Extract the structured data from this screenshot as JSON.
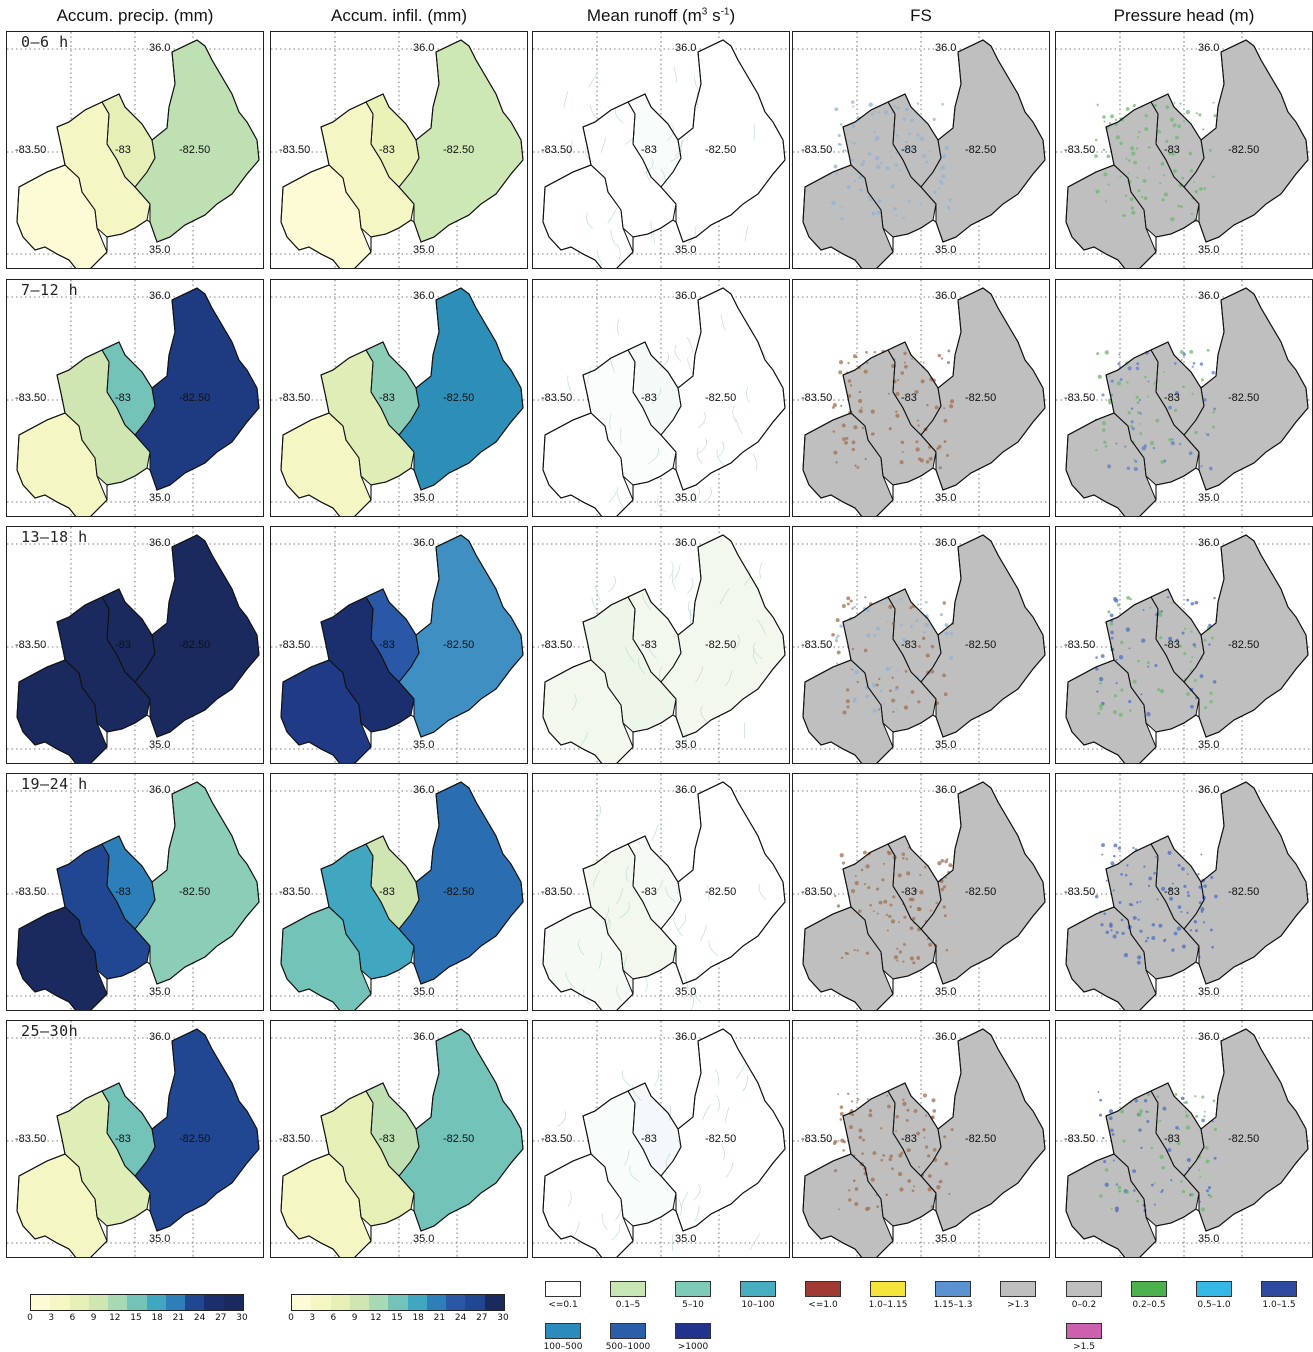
{
  "columns": [
    {
      "id": "precip",
      "title": "Accum. precip. (mm)"
    },
    {
      "id": "infil",
      "title": "Accum. infil. (mm)"
    },
    {
      "id": "runoff",
      "title": "Mean runoff (m",
      "title_sup": "3",
      "title_mid": " s",
      "title_sup2": "-1",
      "title_end": ")"
    },
    {
      "id": "fs",
      "title": "FS"
    },
    {
      "id": "ph",
      "title": "Pressure head (m)"
    }
  ],
  "rows": [
    {
      "label": "0–6  h",
      "precip": [
        "#fdfbd5",
        "#f4f6c4",
        "#e6efb5",
        "#bfe0b3"
      ],
      "infil": [
        "#fdfbd5",
        "#f4f6c4",
        "#eaf2b8",
        "#cde8b4"
      ],
      "runoff": [
        "#ffffff",
        "#ffffff",
        "#f8fcfb",
        "#ffffff"
      ],
      "fs": "#bfbfbf",
      "ph": "#bfbfbf",
      "ph_spots": [
        "#6fb86f"
      ],
      "fs_spots": [
        "#8fb3d6"
      ]
    },
    {
      "label": "7–12  h",
      "precip": [
        "#f4f6c4",
        "#cfe6b3",
        "#73c3b8",
        "#1e3b82"
      ],
      "infil": [
        "#f4f6c4",
        "#dfeeb6",
        "#8ccdb8",
        "#2d8fb8"
      ],
      "runoff": [
        "#ffffff",
        "#fbfdfc",
        "#f4faf8",
        "#ffffff"
      ],
      "fs": "#bfbfbf",
      "ph": "#bfbfbf",
      "ph_spots": [
        "#6fb86f",
        "#5d7fc5"
      ],
      "fs_spots": [
        "#a07050"
      ]
    },
    {
      "label": "13–18  h",
      "precip": [
        "#1a2a5e",
        "#1a2a5e",
        "#1a2a5e",
        "#1a2a5e"
      ],
      "infil": [
        "#203a86",
        "#1b2f6e",
        "#2a58a6",
        "#3f8fc2"
      ],
      "runoff": [
        "#f3f8ef",
        "#eef6ea",
        "#f3f8ef",
        "#f3f8ef"
      ],
      "fs": "#bfbfbf",
      "ph": "#bfbfbf",
      "ph_spots": [
        "#4c6fc2",
        "#6fb86f"
      ],
      "fs_spots": [
        "#a07050",
        "#8fb3d6"
      ]
    },
    {
      "label": "19–24  h",
      "precip": [
        "#1a2a5e",
        "#214792",
        "#2c7fb8",
        "#8ccdb8"
      ],
      "infil": [
        "#73c3b8",
        "#41a7c0",
        "#cfe6b3",
        "#2a6db0"
      ],
      "runoff": [
        "#f6faf4",
        "#f3f8ef",
        "#f6faf4",
        "#ffffff"
      ],
      "fs": "#bfbfbf",
      "ph": "#bfbfbf",
      "ph_spots": [
        "#4c6fc2"
      ],
      "fs_spots": [
        "#a07050"
      ]
    },
    {
      "label": "25–30h",
      "precip": [
        "#f4f6c4",
        "#dfeeb6",
        "#73c3b8",
        "#214792"
      ],
      "infil": [
        "#f4f6c4",
        "#e6efb5",
        "#bfe0b3",
        "#73c3b8"
      ],
      "runoff": [
        "#ffffff",
        "#f8fcfb",
        "#f4f8fb",
        "#ffffff"
      ],
      "fs": "#bfbfbf",
      "ph": "#bfbfbf",
      "ph_spots": [
        "#4c6fc2",
        "#6fb86f"
      ],
      "fs_spots": [
        "#a07050"
      ]
    }
  ],
  "axis_labels": {
    "lat_top": "36.0",
    "lat_bottom": "35.0",
    "lon_left": "-83.50",
    "lon_mid": "-83",
    "lon_right": "-82.50"
  },
  "precip_colorbar": {
    "colors": [
      "#fdfbd5",
      "#f4f6c4",
      "#e6efb5",
      "#cfe6b3",
      "#a8d9b5",
      "#73c3b8",
      "#41a7c0",
      "#2c7fb8",
      "#214792",
      "#1b2f6e",
      "#1a2a5e"
    ],
    "ticks": [
      "0",
      "3",
      "6",
      "9",
      "12",
      "15",
      "18",
      "21",
      "24",
      "27",
      "30"
    ]
  },
  "infil_colorbar": {
    "colors": [
      "#fdfbd5",
      "#f4f6c4",
      "#e6efb5",
      "#cfe6b3",
      "#a8d9b5",
      "#73c3b8",
      "#41a7c0",
      "#2c7fb8",
      "#2a58a6",
      "#214792",
      "#1a2a5e"
    ],
    "ticks": [
      "0",
      "3",
      "6",
      "9",
      "12",
      "15",
      "18",
      "21",
      "24",
      "27",
      "30"
    ]
  },
  "runoff_legend": [
    {
      "label": "<=0.1",
      "color": "#ffffff"
    },
    {
      "label": "0.1–5",
      "color": "#c7e6b4"
    },
    {
      "label": "5–10",
      "color": "#7ecbb7"
    },
    {
      "label": "10–100",
      "color": "#46aec0"
    },
    {
      "label": "100–500",
      "color": "#2b8bbd"
    },
    {
      "label": "500–1000",
      "color": "#2a5ea9"
    },
    {
      "label": ">1000",
      "color": "#21338c"
    }
  ],
  "fs_legend": [
    {
      "label": "<=1.0",
      "color": "#a03a32"
    },
    {
      "label": "1.0–1.15",
      "color": "#f5e53a"
    },
    {
      "label": "1.15–1.3",
      "color": "#5b93d2"
    },
    {
      "label": ">1.3",
      "color": "#bfbfbf"
    }
  ],
  "ph_legend": [
    {
      "label": "0–0.2",
      "color": "#bfbfbf"
    },
    {
      "label": "0.2–0.5",
      "color": "#4cb14c"
    },
    {
      "label": "0.5–1.0",
      "color": "#36b8e6"
    },
    {
      "label": "1.0–1.5",
      "color": "#2e4aa0"
    },
    {
      "label": ">1.5",
      "color": "#cc5fae"
    }
  ]
}
